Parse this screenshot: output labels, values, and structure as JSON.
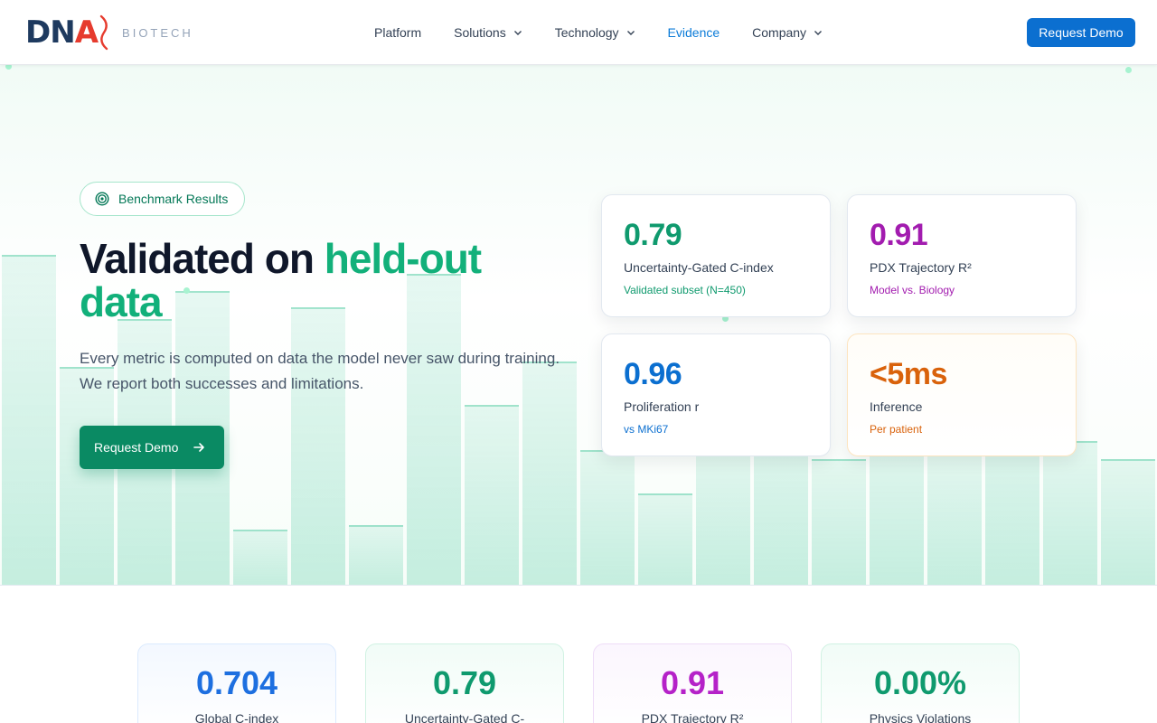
{
  "header": {
    "logo": {
      "d": "D",
      "n": "N",
      "a": "A",
      "sub": "BIOTECH"
    },
    "nav": [
      {
        "label": "Platform",
        "dropdown": false,
        "active": false
      },
      {
        "label": "Solutions",
        "dropdown": true,
        "active": false
      },
      {
        "label": "Technology",
        "dropdown": true,
        "active": false
      },
      {
        "label": "Evidence",
        "dropdown": false,
        "active": true
      },
      {
        "label": "Company",
        "dropdown": true,
        "active": false
      }
    ],
    "cta_label": "Request Demo"
  },
  "hero": {
    "badge": {
      "label": "Benchmark Results",
      "icon": "target-icon"
    },
    "title_plain": "Validated on ",
    "title_accent": "held-out data",
    "subtitle": "Every metric is computed on data the model never saw during training. We report both successes and limitations.",
    "cta_label": "Request Demo",
    "cards": [
      {
        "value": "0.79",
        "label": "Uncertainty-Gated C-index",
        "sub": "Validated subset (N=450)",
        "color": "#0f9a6e"
      },
      {
        "value": "0.91",
        "label": "PDX Trajectory R²",
        "sub": "Model vs. Biology",
        "color": "#a21caf"
      },
      {
        "value": "0.96",
        "label": "Proliferation r",
        "sub": "vs MKi67",
        "color": "#0b6fd0"
      },
      {
        "value": "<5ms",
        "label": "Inference",
        "sub": "Per patient",
        "color": "#d9620b"
      }
    ]
  },
  "stats": [
    {
      "value": "0.704",
      "label": "Global C-index",
      "color": "#1d6fe0",
      "bg": "#f3f8ff",
      "border": "#dbeafe"
    },
    {
      "value": "0.79",
      "label": "Uncertainty-Gated C-",
      "color": "#0f9a6e",
      "bg": "#f1fcf7",
      "border": "#d1f2e3"
    },
    {
      "value": "0.91",
      "label": "PDX Trajectory R²",
      "color": "#b522c8",
      "bg": "#fbf6fe",
      "border": "#eedcf7"
    },
    {
      "value": "0.00%",
      "label": "Physics Violations",
      "color": "#0f9a6e",
      "bg": "#f1fcf7",
      "border": "#d1f2e3"
    }
  ],
  "colors": {
    "primary": "#0b6fd0",
    "accent": "#12b07a",
    "cta": "#0a8a63"
  }
}
